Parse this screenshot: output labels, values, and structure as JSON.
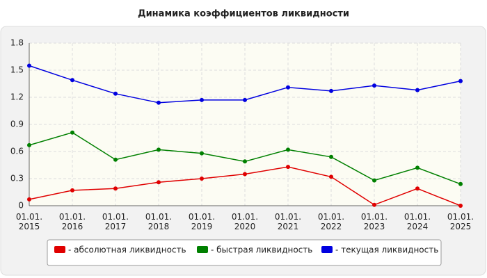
{
  "chart_data": {
    "type": "line",
    "title": "Динамика коэффициентов ликвидности",
    "categories": [
      "01.01.\n2015",
      "01.01.\n2016",
      "01.01.\n2017",
      "01.01.\n2018",
      "01.01.\n2019",
      "01.01.\n2020",
      "01.01.\n2021",
      "01.01.\n2022",
      "01.01.\n2023",
      "01.01.\n2024",
      "01.01.\n2025"
    ],
    "series": [
      {
        "name": "- абсолютная ликвидность",
        "color": "#e00000",
        "values": [
          0.07,
          0.17,
          0.19,
          0.26,
          0.3,
          0.35,
          0.43,
          0.32,
          0.01,
          0.19,
          0.0
        ]
      },
      {
        "name": "- быстрая ликвидность",
        "color": "#008000",
        "values": [
          0.67,
          0.81,
          0.51,
          0.62,
          0.58,
          0.49,
          0.62,
          0.54,
          0.28,
          0.42,
          0.24
        ]
      },
      {
        "name": "- текущая ликвидность",
        "color": "#0000e0",
        "values": [
          1.55,
          1.39,
          1.24,
          1.14,
          1.17,
          1.17,
          1.31,
          1.27,
          1.33,
          1.28,
          1.38
        ]
      }
    ],
    "ylim": [
      0,
      1.8
    ],
    "yticks": [
      0,
      0.3,
      0.6,
      0.9,
      1.2,
      1.5,
      1.8
    ],
    "grid": true,
    "legend": "bottom"
  }
}
